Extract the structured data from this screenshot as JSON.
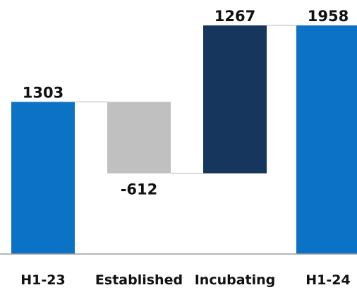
{
  "chart_data": {
    "type": "waterfall",
    "title": "",
    "xlabel": "",
    "ylabel": "",
    "ylim": [
      0,
      2100
    ],
    "grid": false,
    "legend": "none",
    "categories": [
      "H1-23",
      "Established",
      "Incubating",
      "H1-24"
    ],
    "values": [
      1303,
      -612,
      1267,
      1958
    ],
    "labels": [
      "1303",
      "-612",
      "1267",
      "1958"
    ],
    "kinds": [
      "total",
      "delta",
      "delta",
      "total"
    ],
    "colors": {
      "total": "#0B72C6",
      "decrease": "#C0C0C0",
      "increase": "#16365D",
      "connector": "#D0D0D0",
      "axis": "#9E9E9E"
    }
  }
}
